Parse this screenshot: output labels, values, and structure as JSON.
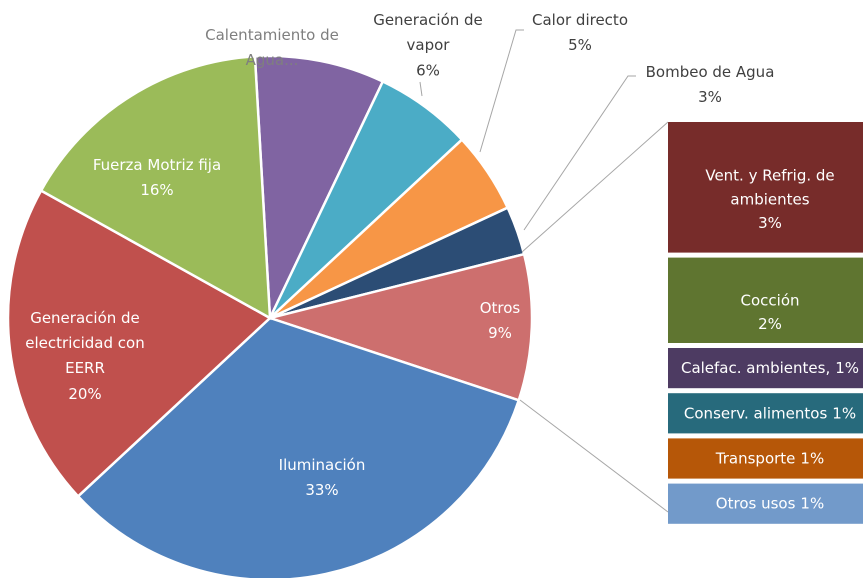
{
  "chart_data": {
    "type": "pie-of-bar",
    "categories": [
      "Calentamiento de\nAgua...",
      "Generación de\nvapor",
      "Calor directo",
      "Bombeo de Agua",
      "Otros",
      "Iluminación",
      "Generación de\nelectricidad con\nEERR",
      "Fuerza Motriz fija"
    ],
    "values": [
      8,
      6,
      5,
      3,
      9,
      33,
      20,
      16
    ],
    "value_labels": [
      null,
      "6%",
      "5%",
      "3%",
      "9%",
      "33%",
      "20%",
      "16%"
    ],
    "colors": [
      "#8064a2",
      "#4bacc6",
      "#f79646",
      "#2c4d75",
      "#cd6f6e",
      "#4f81bd",
      "#c0504d",
      "#9bbb59"
    ],
    "breakout": {
      "categories": [
        "Vent. y Refrig. de\nambientes",
        "Cocción",
        "Calefac. ambientes,",
        "Conserv. alimentos",
        "Transporte",
        "Otros usos"
      ],
      "values": [
        3,
        2,
        1,
        1,
        1,
        1
      ],
      "value_labels": [
        "3%",
        "2%",
        "1%",
        "1%",
        "1%",
        "1%"
      ],
      "colors": [
        "#772c2a",
        "#5f7530",
        "#4d3b62",
        "#276a7c",
        "#b65708",
        "#729aca"
      ]
    }
  }
}
